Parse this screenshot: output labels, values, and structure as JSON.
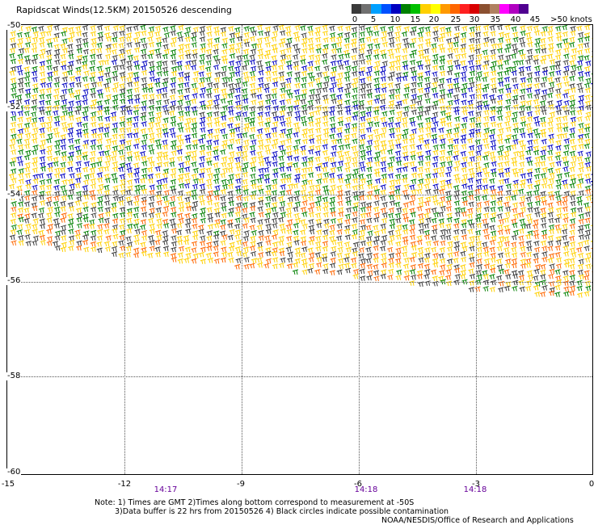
{
  "title": "Rapidscat Winds(12.5KM) 20150526 descending",
  "legend": {
    "colors": [
      "#3a3a3a",
      "#707070",
      "#00a0ff",
      "#0050ff",
      "#0000c0",
      "#008000",
      "#00c000",
      "#ffd000",
      "#ffff00",
      "#ff9900",
      "#ff6600",
      "#ff2020",
      "#d80000",
      "#8b5030",
      "#b08060",
      "#ff00ff",
      "#b000c0",
      "#500090"
    ],
    "labels": [
      "0",
      "5",
      "10",
      "15",
      "20",
      "25",
      "30",
      "35",
      "40",
      "45",
      ">50 knots"
    ]
  },
  "map": {
    "lat_labels": [
      "-50",
      "-52",
      "-54",
      "-56",
      "-58",
      "-60"
    ],
    "lon_labels": [
      "-15",
      "-12",
      "-9",
      "-6",
      "-3",
      "0"
    ],
    "time_labels": [
      "14:17",
      "14:18",
      "14:18"
    ]
  },
  "notes": [
    "Note: 1) Times are GMT 2)Times along bottom correspond to measurement at -50S",
    "3)Data buffer is 22 hrs from 20150526 4) Black circles indicate possible contamination"
  ],
  "credit": "NOAA/NESDIS/Office of Research and Applications"
}
